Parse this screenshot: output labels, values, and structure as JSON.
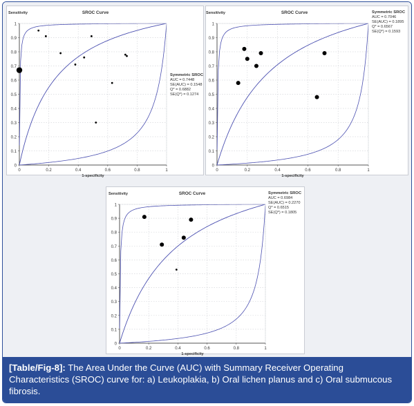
{
  "caption": {
    "label": "[Table/Fig-8]:",
    "text": " The Area Under the Curve (AUC) with Summary Receiver Operating Characteristics (SROC) curve for: a) Leukoplakia, b) Oral lichen planus and c) Oral submucous fibrosis."
  },
  "colors": {
    "curve": "#4a4fb0",
    "grid": "#d6d8dc",
    "axis": "#555555",
    "point": "#000000",
    "caption_bg": "#2b4d97"
  },
  "chart_data": [
    {
      "type": "scatter",
      "title": "SROC Curve",
      "xlabel": "1-specificity",
      "ylabel": "Sensitivity",
      "xlim": [
        0,
        1
      ],
      "ylim": [
        0,
        1
      ],
      "xticks": [
        "0",
        "0.2",
        "0.4",
        "0.6",
        "0.8",
        "1"
      ],
      "yticks": [
        "0",
        "0.1",
        "0.2",
        "0.3",
        "0.4",
        "0.5",
        "0.6",
        "0.7",
        "0.8",
        "0.9",
        "1"
      ],
      "grid": true,
      "legend": {
        "title": "Symmetric SROC",
        "lines": [
          "AUC = 0.7448",
          "SE(AUC) = 0.1548",
          "Q* = 0.6882",
          "SE(Q*) = 0.1274"
        ]
      },
      "sroc_q": 0.6882,
      "points": [
        {
          "x": 0.0,
          "y": 0.67,
          "weight": "large"
        },
        {
          "x": 0.13,
          "y": 0.95,
          "weight": "small"
        },
        {
          "x": 0.18,
          "y": 0.91,
          "weight": "small"
        },
        {
          "x": 0.28,
          "y": 0.79,
          "weight": "small"
        },
        {
          "x": 0.38,
          "y": 0.71,
          "weight": "small"
        },
        {
          "x": 0.44,
          "y": 0.76,
          "weight": "small"
        },
        {
          "x": 0.49,
          "y": 0.91,
          "weight": "small"
        },
        {
          "x": 0.72,
          "y": 0.78,
          "weight": "small"
        },
        {
          "x": 0.73,
          "y": 0.77,
          "weight": "small"
        },
        {
          "x": 0.63,
          "y": 0.58,
          "weight": "small"
        },
        {
          "x": 0.52,
          "y": 0.3,
          "weight": "small"
        }
      ]
    },
    {
      "type": "scatter",
      "title": "SROC Curve",
      "xlabel": "1-specificity",
      "ylabel": "Sensitivity",
      "xlim": [
        0,
        1
      ],
      "ylim": [
        0,
        1
      ],
      "xticks": [
        "0",
        "0.2",
        "0.4",
        "0.6",
        "0.8",
        "1"
      ],
      "yticks": [
        "0",
        "0.1",
        "0.2",
        "0.3",
        "0.4",
        "0.5",
        "0.6",
        "0.7",
        "0.8",
        "0.9",
        "1"
      ],
      "grid": true,
      "legend": {
        "title": "Symmetric SROC",
        "lines": [
          "AUC = 0.7046",
          "SE(AUC) = 0.1895",
          "Q* = 0.6567",
          "SE(Q*) = 0.1593"
        ]
      },
      "sroc_q": 0.6567,
      "points": [
        {
          "x": 0.18,
          "y": 0.82,
          "weight": "medium"
        },
        {
          "x": 0.2,
          "y": 0.75,
          "weight": "medium"
        },
        {
          "x": 0.29,
          "y": 0.79,
          "weight": "medium"
        },
        {
          "x": 0.26,
          "y": 0.7,
          "weight": "medium"
        },
        {
          "x": 0.14,
          "y": 0.58,
          "weight": "medium"
        },
        {
          "x": 0.71,
          "y": 0.79,
          "weight": "medium"
        },
        {
          "x": 0.66,
          "y": 0.48,
          "weight": "medium"
        }
      ]
    },
    {
      "type": "scatter",
      "title": "SROC Curve",
      "xlabel": "1-specificity",
      "ylabel": "Sensitivity",
      "xlim": [
        0,
        1
      ],
      "ylim": [
        0,
        1
      ],
      "xticks": [
        "0",
        "0.2",
        "0.4",
        "0.6",
        "0.8",
        "1"
      ],
      "yticks": [
        "0",
        "0.1",
        "0.2",
        "0.3",
        "0.4",
        "0.5",
        "0.6",
        "0.7",
        "0.8",
        "0.9",
        "1"
      ],
      "grid": true,
      "legend": {
        "title": "Symmetric SROC",
        "lines": [
          "AUC = 0.6984",
          "SE(AUC) = 0.2270",
          "Q* = 0.6515",
          "SE(Q*) = 0.1805"
        ]
      },
      "sroc_q": 0.6515,
      "points": [
        {
          "x": 0.17,
          "y": 0.91,
          "weight": "medium"
        },
        {
          "x": 0.49,
          "y": 0.89,
          "weight": "medium"
        },
        {
          "x": 0.44,
          "y": 0.76,
          "weight": "medium"
        },
        {
          "x": 0.29,
          "y": 0.71,
          "weight": "medium"
        },
        {
          "x": 0.39,
          "y": 0.53,
          "weight": "small"
        }
      ]
    }
  ]
}
